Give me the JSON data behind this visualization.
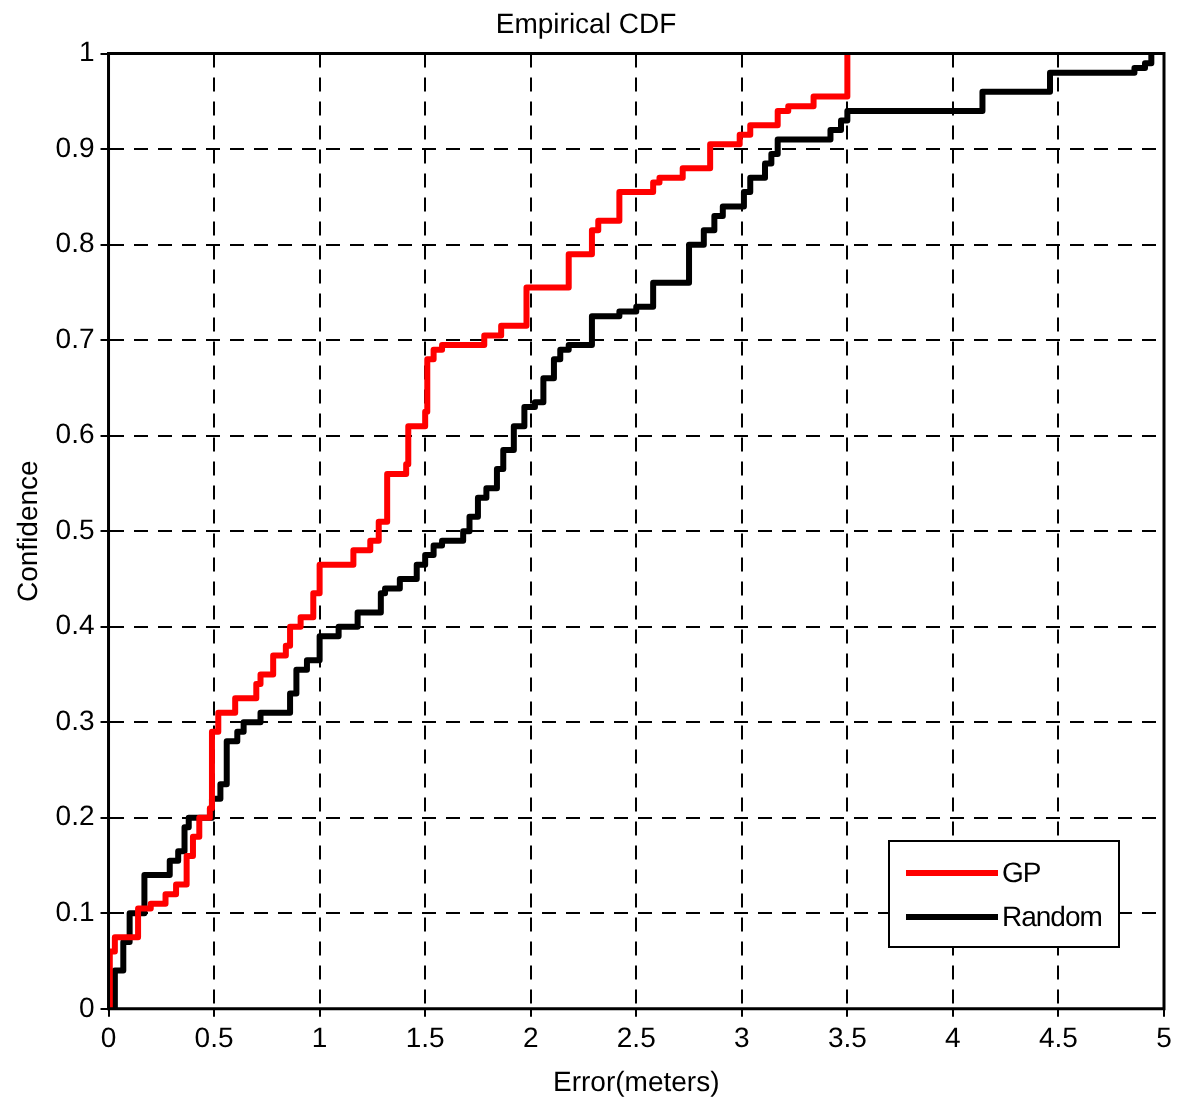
{
  "chart_data": {
    "type": "step",
    "title": "Empirical CDF",
    "xlabel": "Error(meters)",
    "ylabel": "Confidence",
    "xlim": [
      0,
      5
    ],
    "xticks": [
      0,
      0.5,
      1,
      1.5,
      2,
      2.5,
      3,
      3.5,
      4,
      4.5,
      5
    ],
    "ylim": [
      0,
      1
    ],
    "yticks": [
      0,
      0.1,
      0.2,
      0.3,
      0.4,
      0.5,
      0.6,
      0.7,
      0.8,
      0.9,
      1
    ],
    "grid": true,
    "legend": "bottom right",
    "marker": "none",
    "series": [
      {
        "name": "GP",
        "color": "#ff0000",
        "x": [
          0,
          0.006,
          0.03,
          0.14,
          0.2,
          0.27,
          0.32,
          0.37,
          0.4,
          0.43,
          0.48,
          0.49,
          0.52,
          0.6,
          0.7,
          0.72,
          0.78,
          0.84,
          0.86,
          0.91,
          0.97,
          1.0,
          1.16,
          1.24,
          1.28,
          1.32,
          1.41,
          1.42,
          1.5,
          1.51,
          1.54,
          1.58,
          1.78,
          1.86,
          1.98,
          2.18,
          2.29,
          2.32,
          2.42,
          2.58,
          2.61,
          2.72,
          2.85,
          2.99,
          3.04,
          3.17,
          3.22,
          3.34,
          3.5
        ],
        "values": [
          0,
          0.06,
          0.075,
          0.105,
          0.11,
          0.12,
          0.13,
          0.16,
          0.18,
          0.2,
          0.21,
          0.29,
          0.31,
          0.325,
          0.34,
          0.35,
          0.37,
          0.38,
          0.4,
          0.41,
          0.435,
          0.465,
          0.48,
          0.49,
          0.51,
          0.56,
          0.57,
          0.61,
          0.625,
          0.68,
          0.69,
          0.695,
          0.705,
          0.715,
          0.755,
          0.79,
          0.815,
          0.825,
          0.855,
          0.865,
          0.87,
          0.88,
          0.905,
          0.915,
          0.925,
          0.94,
          0.945,
          0.955,
          1
        ]
      },
      {
        "name": "Random",
        "color": "#000000",
        "x": [
          0,
          0.03,
          0.07,
          0.1,
          0.17,
          0.29,
          0.33,
          0.36,
          0.38,
          0.49,
          0.53,
          0.56,
          0.61,
          0.64,
          0.72,
          0.86,
          0.89,
          0.94,
          1.0,
          1.09,
          1.18,
          1.29,
          1.31,
          1.38,
          1.46,
          1.5,
          1.54,
          1.58,
          1.68,
          1.71,
          1.75,
          1.79,
          1.84,
          1.87,
          1.92,
          1.97,
          2.02,
          2.06,
          2.11,
          2.14,
          2.18,
          2.29,
          2.42,
          2.5,
          2.58,
          2.75,
          2.82,
          2.87,
          2.91,
          3.01,
          3.04,
          3.11,
          3.14,
          3.17,
          3.42,
          3.47,
          3.5,
          4.14,
          4.46,
          4.86,
          4.91,
          4.94
        ],
        "values": [
          0,
          0.04,
          0.07,
          0.1,
          0.14,
          0.155,
          0.165,
          0.19,
          0.2,
          0.22,
          0.235,
          0.28,
          0.29,
          0.3,
          0.31,
          0.33,
          0.355,
          0.365,
          0.39,
          0.4,
          0.415,
          0.435,
          0.44,
          0.45,
          0.465,
          0.475,
          0.485,
          0.49,
          0.5,
          0.515,
          0.535,
          0.545,
          0.565,
          0.585,
          0.61,
          0.63,
          0.635,
          0.66,
          0.68,
          0.69,
          0.695,
          0.725,
          0.73,
          0.735,
          0.76,
          0.8,
          0.815,
          0.83,
          0.84,
          0.855,
          0.87,
          0.885,
          0.895,
          0.91,
          0.92,
          0.93,
          0.94,
          0.96,
          0.98,
          0.985,
          0.99,
          1
        ]
      }
    ]
  }
}
